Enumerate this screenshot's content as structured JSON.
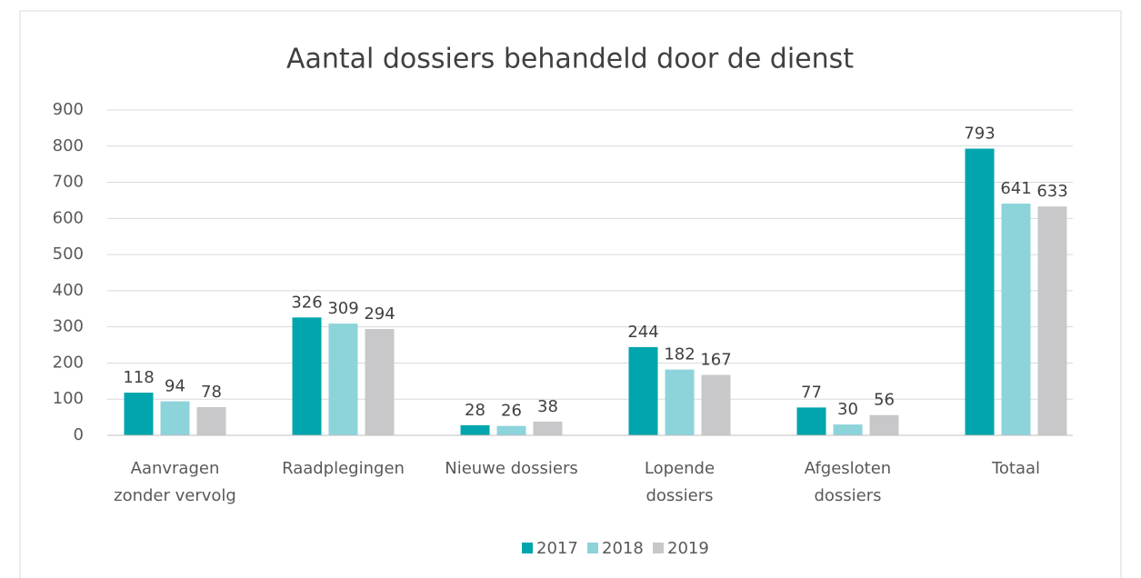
{
  "chart_data": {
    "type": "bar",
    "title": "Aantal dossiers behandeld door de dienst",
    "categories": [
      "Aanvragen zonder vervolg",
      "Raadplegingen",
      "Nieuwe dossiers",
      "Lopende dossiers",
      "Afgesloten dossiers",
      "Totaal"
    ],
    "series": [
      {
        "name": "2017",
        "color": "#00a5ad",
        "values": [
          118,
          326,
          28,
          244,
          77,
          793
        ]
      },
      {
        "name": "2018",
        "color": "#8dd3da",
        "values": [
          94,
          309,
          26,
          182,
          30,
          641
        ]
      },
      {
        "name": "2019",
        "color": "#c8c8ca",
        "values": [
          78,
          294,
          38,
          167,
          56,
          633
        ]
      }
    ],
    "ylim": [
      0,
      900
    ],
    "yticks": [
      0,
      100,
      200,
      300,
      400,
      500,
      600,
      700,
      800,
      900
    ],
    "grid": true,
    "legend": "bottom"
  }
}
